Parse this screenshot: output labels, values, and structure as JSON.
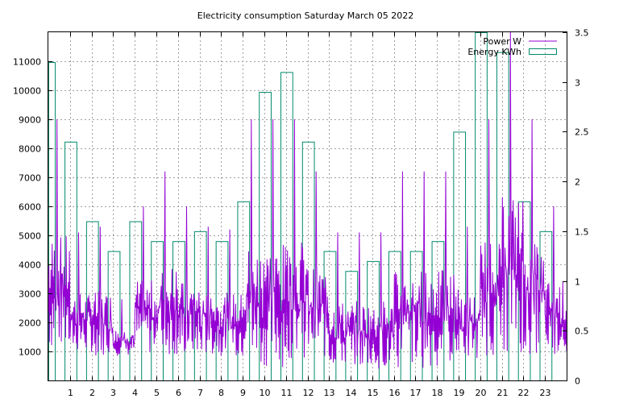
{
  "chart_data": {
    "type": "bar",
    "title": "Electricity consumption Saturday March 05 2022",
    "x_ticks": [
      "1",
      "2",
      "3",
      "4",
      "5",
      "6",
      "7",
      "8",
      "9",
      "10",
      "11",
      "12",
      "13",
      "14",
      "15",
      "16",
      "17",
      "18",
      "19",
      "20",
      "21",
      "22",
      "23"
    ],
    "xlim": [
      0,
      24
    ],
    "y_left": {
      "ylim": [
        0,
        12000
      ],
      "ticks": [
        "1000",
        "2000",
        "3000",
        "4000",
        "5000",
        "6000",
        "7000",
        "8000",
        "9000",
        "10000",
        "11000"
      ]
    },
    "y_right": {
      "ylim": [
        0,
        3.5
      ],
      "ticks": [
        "0",
        "0.5",
        "1",
        "1.5",
        "2",
        "2.5",
        "3",
        "3.5"
      ]
    },
    "grid": true,
    "legend_position": "top-right",
    "series": [
      {
        "name": "Power W",
        "axis": "left",
        "style": "line",
        "color": "#9400d3",
        "segments": [
          {
            "x0": 0.0,
            "x1": 1.0,
            "lo": 1000,
            "hi": 9000
          },
          {
            "x0": 1.0,
            "x1": 2.0,
            "lo": 950,
            "hi": 5100
          },
          {
            "x0": 2.0,
            "x1": 3.0,
            "lo": 850,
            "hi": 5300
          },
          {
            "x0": 3.0,
            "x1": 4.0,
            "lo": 850,
            "hi": 2800
          },
          {
            "x0": 4.0,
            "x1": 5.0,
            "lo": 900,
            "hi": 6000
          },
          {
            "x0": 5.0,
            "x1": 6.0,
            "lo": 850,
            "hi": 7200
          },
          {
            "x0": 6.0,
            "x1": 7.0,
            "lo": 850,
            "hi": 6000
          },
          {
            "x0": 7.0,
            "x1": 8.0,
            "lo": 850,
            "hi": 5300
          },
          {
            "x0": 8.0,
            "x1": 9.0,
            "lo": 850,
            "hi": 5200
          },
          {
            "x0": 9.0,
            "x1": 10.0,
            "lo": 450,
            "hi": 9000
          },
          {
            "x0": 10.0,
            "x1": 11.0,
            "lo": 450,
            "hi": 9000
          },
          {
            "x0": 11.0,
            "x1": 12.0,
            "lo": 750,
            "hi": 9000
          },
          {
            "x0": 12.0,
            "x1": 13.0,
            "lo": 750,
            "hi": 7200
          },
          {
            "x0": 13.0,
            "x1": 14.0,
            "lo": 450,
            "hi": 5100
          },
          {
            "x0": 14.0,
            "x1": 15.0,
            "lo": 400,
            "hi": 5100
          },
          {
            "x0": 15.0,
            "x1": 16.0,
            "lo": 400,
            "hi": 5100
          },
          {
            "x0": 16.0,
            "x1": 17.0,
            "lo": 400,
            "hi": 7200
          },
          {
            "x0": 17.0,
            "x1": 18.0,
            "lo": 400,
            "hi": 7200
          },
          {
            "x0": 18.0,
            "x1": 19.0,
            "lo": 450,
            "hi": 7200
          },
          {
            "x0": 19.0,
            "x1": 20.0,
            "lo": 750,
            "hi": 5300
          },
          {
            "x0": 20.0,
            "x1": 21.0,
            "lo": 850,
            "hi": 9000
          },
          {
            "x0": 21.0,
            "x1": 22.0,
            "lo": 950,
            "hi": 12000
          },
          {
            "x0": 22.0,
            "x1": 23.0,
            "lo": 900,
            "hi": 9000
          },
          {
            "x0": 23.0,
            "x1": 24.0,
            "lo": 900,
            "hi": 6000
          }
        ]
      },
      {
        "name": "Energy KWh",
        "axis": "right",
        "style": "impulse-boxes",
        "color": "#008b6b",
        "bars": [
          {
            "x0": 0.0,
            "x1": 0.3,
            "value": 3.2
          },
          {
            "x0": 0.75,
            "x1": 1.3,
            "value": 2.4
          },
          {
            "x0": 1.75,
            "x1": 2.3,
            "value": 1.6
          },
          {
            "x0": 2.75,
            "x1": 3.3,
            "value": 1.3
          },
          {
            "x0": 3.75,
            "x1": 4.3,
            "value": 1.6
          },
          {
            "x0": 4.75,
            "x1": 5.3,
            "value": 1.4
          },
          {
            "x0": 5.75,
            "x1": 6.3,
            "value": 1.4
          },
          {
            "x0": 6.75,
            "x1": 7.3,
            "value": 1.5
          },
          {
            "x0": 7.75,
            "x1": 8.3,
            "value": 1.4
          },
          {
            "x0": 8.75,
            "x1": 9.3,
            "value": 1.8
          },
          {
            "x0": 9.75,
            "x1": 10.3,
            "value": 2.9
          },
          {
            "x0": 10.75,
            "x1": 11.3,
            "value": 3.1
          },
          {
            "x0": 11.75,
            "x1": 12.3,
            "value": 2.4
          },
          {
            "x0": 12.75,
            "x1": 13.3,
            "value": 1.3
          },
          {
            "x0": 13.75,
            "x1": 14.3,
            "value": 1.1
          },
          {
            "x0": 14.75,
            "x1": 15.3,
            "value": 1.2
          },
          {
            "x0": 15.75,
            "x1": 16.3,
            "value": 1.3
          },
          {
            "x0": 16.75,
            "x1": 17.3,
            "value": 1.3
          },
          {
            "x0": 17.75,
            "x1": 18.3,
            "value": 1.4
          },
          {
            "x0": 18.75,
            "x1": 19.3,
            "value": 2.5
          },
          {
            "x0": 19.75,
            "x1": 20.3,
            "value": 3.5
          },
          {
            "x0": 20.75,
            "x1": 21.3,
            "value": 3.3
          },
          {
            "x0": 21.75,
            "x1": 22.3,
            "value": 1.8
          },
          {
            "x0": 22.75,
            "x1": 23.3,
            "value": 1.5
          }
        ]
      }
    ]
  }
}
